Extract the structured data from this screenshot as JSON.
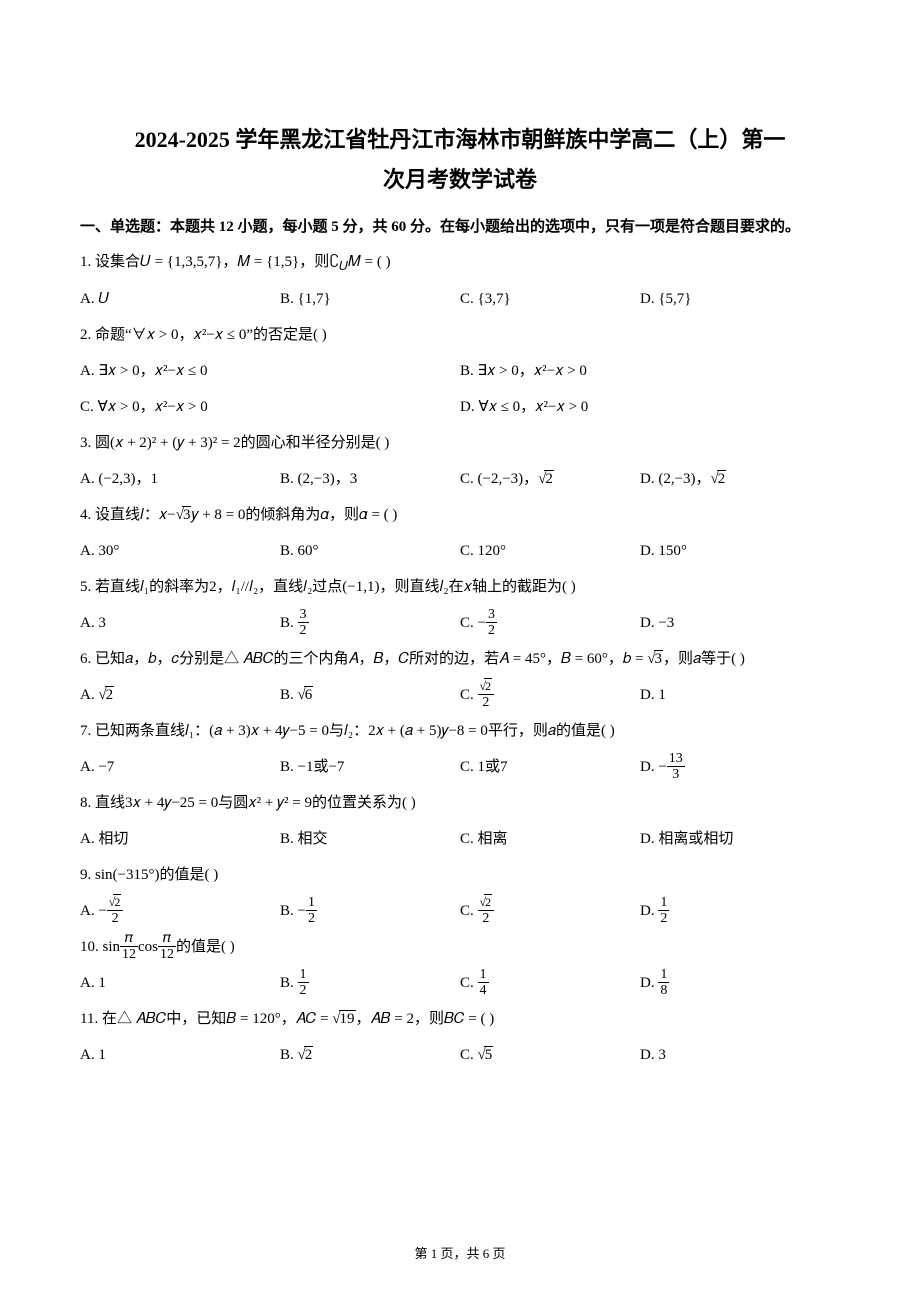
{
  "title_line1": "2024-2025 学年黑龙江省牡丹江市海林市朝鲜族中学高二（上）第一",
  "title_line2": "次月考数学试卷",
  "section1_header": "一、单选题：本题共 12 小题，每小题 5 分，共 60 分。在每小题给出的选项中，只有一项是符合题目要求的。",
  "footer": "第 1 页，共 6 页",
  "q1": {
    "stem_pre": "1. 设集合",
    "stem_U": "𝑈 = {1,3,5,7}，",
    "stem_M": "𝑀 = {1,5}，则",
    "stem_post": "∁",
    "stem_sub": "𝑈",
    "stem_end": "𝑀 = (    )",
    "A": "A. 𝑈",
    "B": "B. {1,7}",
    "C": "C. {3,7}",
    "D": "D. {5,7}"
  },
  "q2": {
    "stem": "2. 命题“∀𝑥 > 0，𝑥²−𝑥 ≤ 0”的否定是(    )",
    "A": "A. ∃𝑥 > 0，𝑥²−𝑥 ≤ 0",
    "B": "B. ∃𝑥 > 0，𝑥²−𝑥 > 0",
    "C": "C. ∀𝑥 > 0，𝑥²−𝑥 > 0",
    "D": "D. ∀𝑥 ≤ 0，𝑥²−𝑥 > 0"
  },
  "q3": {
    "stem": "3. 圆(𝑥 + 2)² + (𝑦 + 3)² = 2的圆心和半径分别是(    )",
    "A": "A. (−2,3)，1",
    "B_pre": "B. (2,−3)，3",
    "C_pre": "C. (−2,−3)，",
    "D_pre": "D. (2,−3)，"
  },
  "q4": {
    "stem_pre": "4. 设直线𝑙：𝑥−",
    "stem_post": "𝑦 + 8 = 0的倾斜角为𝛼，则𝛼 = (    )",
    "A": "A. 30°",
    "B": "B. 60°",
    "C": "C. 120°",
    "D": "D. 150°"
  },
  "q5": {
    "stem": "5. 若直线𝑙₁的斜率为2，𝑙₁//𝑙₂，直线𝑙₂过点(−1,1)，则直线𝑙₂在𝑥轴上的截距为(    )",
    "A": "A. 3",
    "D": "D. −3"
  },
  "q6": {
    "stem_pre": "6. 已知𝑎，𝑏，𝑐分别是△ 𝐴𝐵𝐶的三个内角𝐴，𝐵，𝐶所对的边，若𝐴 = 45°，𝐵 = 60°，𝑏 = ",
    "stem_post": "，则𝑎等于(    )",
    "D": "D. 1"
  },
  "q7": {
    "stem": "7. 已知两条直线𝑙₁：(𝑎 + 3)𝑥 + 4𝑦−5 = 0与𝑙₂：2𝑥 + (𝑎 + 5)𝑦−8 = 0平行，则𝑎的值是(    )",
    "A": "A. −7",
    "B": "B. −1或−7",
    "C": "C. 1或7"
  },
  "q8": {
    "stem": "8. 直线3𝑥 + 4𝑦−25 = 0与圆𝑥² + 𝑦² = 9的位置关系为(    )",
    "A": "A. 相切",
    "B": "B. 相交",
    "C": "C. 相离",
    "D": "D. 相离或相切"
  },
  "q9": {
    "stem": "9. sin(−315°)的值是(    )"
  },
  "q10": {
    "stem_pre": "10. sin",
    "stem_mid": "cos",
    "stem_post": "的值是(    )",
    "A": "A. 1"
  },
  "q11": {
    "stem_pre": "11. 在△ 𝐴𝐵𝐶中，已知𝐵 = 120°，𝐴𝐶 = ",
    "stem_post": "，𝐴𝐵 = 2，则𝐵𝐶 = (    )",
    "A": "A. 1",
    "D": "D. 3"
  }
}
